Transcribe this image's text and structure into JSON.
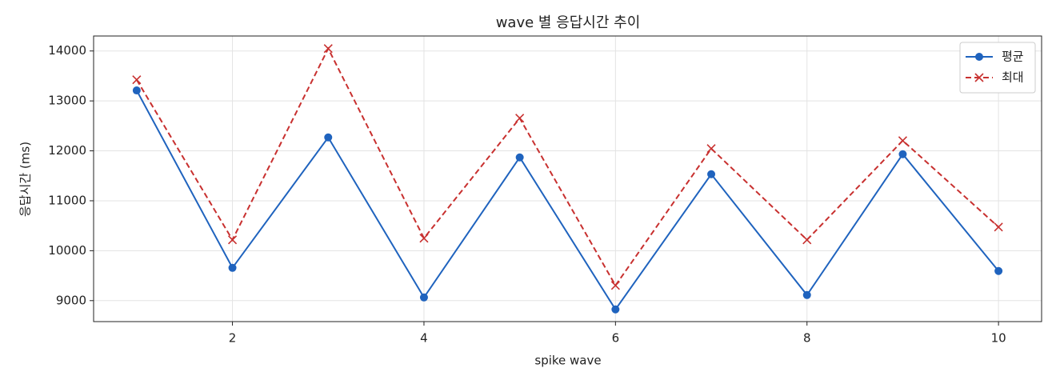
{
  "chart_data": {
    "type": "line",
    "title": "wave 별 응답시간 추이",
    "xlabel": "spike wave",
    "ylabel": "응답시간 (ms)",
    "x": [
      1,
      2,
      3,
      4,
      5,
      6,
      7,
      8,
      9,
      10
    ],
    "series": [
      {
        "name": "평균",
        "color": "#1f63be",
        "marker": "o",
        "linestyle": "solid",
        "values": [
          13210,
          9657,
          12269,
          9064,
          11869,
          8824,
          11532,
          9112,
          11933,
          9593
        ]
      },
      {
        "name": "최대",
        "color": "#c8302f",
        "marker": "x",
        "linestyle": "dashed",
        "values": [
          13423,
          10218,
          14048,
          10250,
          12654,
          9304,
          12045,
          10218,
          12205,
          10474
        ]
      }
    ],
    "xlim": [
      0.55,
      10.45
    ],
    "xticks": [
      2,
      4,
      6,
      8,
      10
    ],
    "ylim": [
      8580,
      14300
    ],
    "yticks": [
      9000,
      10000,
      11000,
      12000,
      13000,
      14000
    ],
    "grid": true,
    "legend": "upper right"
  }
}
